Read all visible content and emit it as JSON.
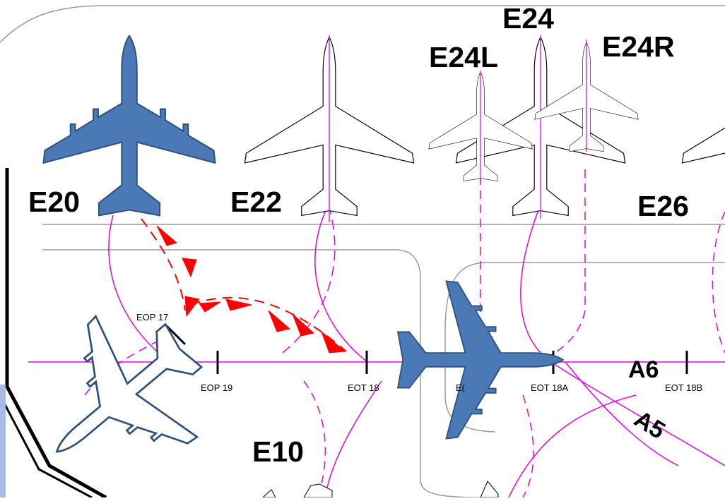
{
  "stands": {
    "e20": "E20",
    "e22": "E22",
    "e24": "E24",
    "e24l": "E24L",
    "e24r": "E24R",
    "e26": "E26",
    "e10": "E10"
  },
  "stop_markers": {
    "eop17": "EOP 17",
    "eop19": "EOP 19",
    "eot18": "EOT 18",
    "eot18_partial": "E(",
    "eot18a": "EOT 18A",
    "eot18b": "EOT 18B"
  },
  "taxiways": {
    "a6": "A6",
    "a5": "A5"
  },
  "colors": {
    "aircraft_fill": "#4a79b6",
    "aircraft_outline": "#2d507d",
    "guideline": "#e600e6",
    "route_arrow": "#ff0000",
    "pavement_edge": "#9a9a9a",
    "boundary_outline": "#000000"
  },
  "icons": {
    "parked_aircraft": "airplane-icon",
    "taxiing_aircraft": "airplane-icon",
    "route_arrow": "arrow-icon"
  }
}
